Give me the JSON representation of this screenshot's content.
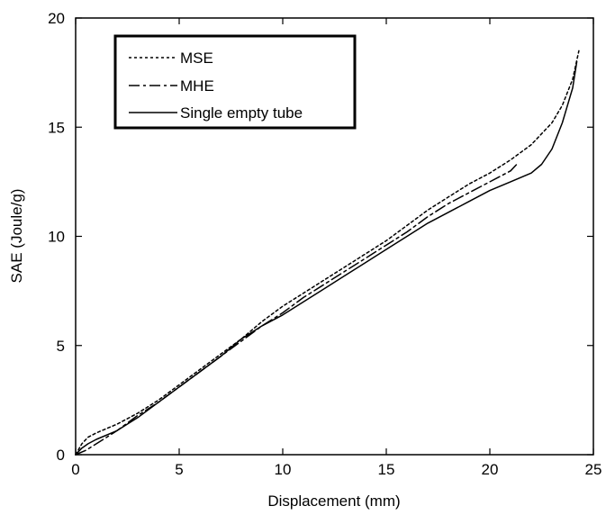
{
  "chart_data": {
    "type": "line",
    "title": "",
    "xlabel": "Displacement (mm)",
    "ylabel": "SAE (Joule/g)",
    "xlim": [
      0,
      25
    ],
    "ylim": [
      0,
      20
    ],
    "xticks": [
      0,
      5,
      10,
      15,
      20,
      25
    ],
    "yticks": [
      0,
      5,
      10,
      15,
      20
    ],
    "xtick_labels": [
      "0",
      "5",
      "10",
      "15",
      "20",
      "25"
    ],
    "ytick_labels": [
      "0",
      "5",
      "10",
      "15",
      "20"
    ],
    "grid": false,
    "legend_position": "top-left",
    "series": [
      {
        "name": "MSE",
        "style": "dotted",
        "color": "#000000",
        "x": [
          0,
          0.3,
          0.6,
          1,
          2,
          3,
          4,
          5,
          6,
          7,
          8,
          9,
          10,
          11,
          12,
          13,
          14,
          15,
          16,
          17,
          18,
          19,
          20,
          21,
          22,
          23,
          23.5,
          24,
          24.3
        ],
        "y": [
          0,
          0.5,
          0.8,
          1.0,
          1.4,
          1.9,
          2.5,
          3.2,
          3.9,
          4.6,
          5.3,
          6.1,
          6.8,
          7.4,
          8.0,
          8.6,
          9.2,
          9.8,
          10.5,
          11.2,
          11.8,
          12.4,
          12.9,
          13.5,
          14.2,
          15.2,
          16.0,
          17.2,
          18.5
        ]
      },
      {
        "name": "MHE",
        "style": "dash-dot",
        "color": "#000000",
        "x": [
          0,
          0.5,
          1,
          2,
          3,
          4,
          5,
          6,
          7,
          8,
          9,
          10,
          11,
          12,
          13,
          14,
          15,
          16,
          17,
          18,
          19,
          20,
          21,
          21.3
        ],
        "y": [
          0,
          0.2,
          0.5,
          1.1,
          1.8,
          2.4,
          3.1,
          3.8,
          4.5,
          5.2,
          5.9,
          6.5,
          7.2,
          7.8,
          8.4,
          9.0,
          9.6,
          10.2,
          10.9,
          11.5,
          12.0,
          12.5,
          13.0,
          13.3
        ]
      },
      {
        "name": "Single empty tube",
        "style": "solid",
        "color": "#000000",
        "x": [
          0,
          0.3,
          0.6,
          1,
          2,
          3,
          4,
          5,
          6,
          7,
          8,
          9,
          10,
          11,
          12,
          13,
          14,
          15,
          16,
          17,
          18,
          19,
          20,
          21,
          22,
          22.5,
          23,
          23.5,
          24,
          24.2
        ],
        "y": [
          0,
          0.3,
          0.5,
          0.7,
          1.1,
          1.7,
          2.4,
          3.1,
          3.8,
          4.5,
          5.3,
          5.9,
          6.4,
          7.0,
          7.6,
          8.2,
          8.8,
          9.4,
          10.0,
          10.6,
          11.1,
          11.6,
          12.1,
          12.5,
          12.9,
          13.3,
          14.0,
          15.2,
          16.8,
          18.0
        ]
      }
    ]
  }
}
